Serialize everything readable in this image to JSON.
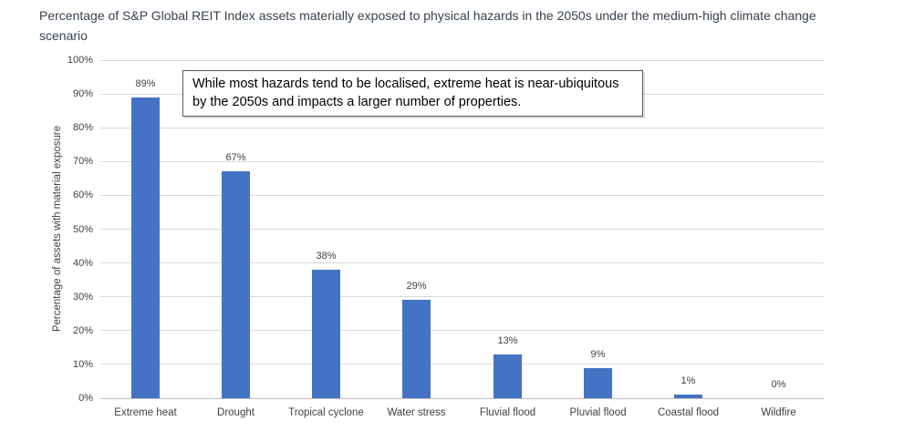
{
  "title": "Percentage of S&P Global REIT Index assets materially exposed to physical hazards in the 2050s under the medium-high climate change scenario",
  "annotation": "While most hazards tend to be localised, extreme heat is near-ubiquitous by the 2050s and impacts a larger number of properties.",
  "colors": {
    "bar": "#4472C4",
    "title_text": "#36424E",
    "axis_text": "#404040",
    "gridline": "#D9D9D9",
    "axis_line": "#BFBFBF",
    "annotation_border": "#595959",
    "background": "#FFFFFF"
  },
  "chart_data": {
    "type": "bar",
    "title": "Percentage of S&P Global REIT Index assets materially exposed to physical hazards in the 2050s under the medium-high climate change scenario",
    "categories": [
      "Extreme heat",
      "Drought",
      "Tropical cyclone",
      "Water stress",
      "Fluvial flood",
      "Pluvial flood",
      "Coastal flood",
      "Wildfire"
    ],
    "values": [
      89,
      67,
      38,
      29,
      13,
      9,
      1,
      0
    ],
    "value_labels": [
      "89%",
      "67%",
      "38%",
      "29%",
      "13%",
      "9%",
      "1%",
      "0%"
    ],
    "xlabel": "",
    "ylabel": "Percentage of assets with material exposure",
    "ylim": [
      0,
      100
    ],
    "ytick_step": 10,
    "ytick_labels": [
      "0%",
      "10%",
      "20%",
      "30%",
      "40%",
      "50%",
      "60%",
      "70%",
      "80%",
      "90%",
      "100%"
    ],
    "grid": true,
    "legend": false,
    "annotation": "While most hazards tend to be localised, extreme heat is near-ubiquitous by the 2050s and impacts a larger number of properties."
  }
}
